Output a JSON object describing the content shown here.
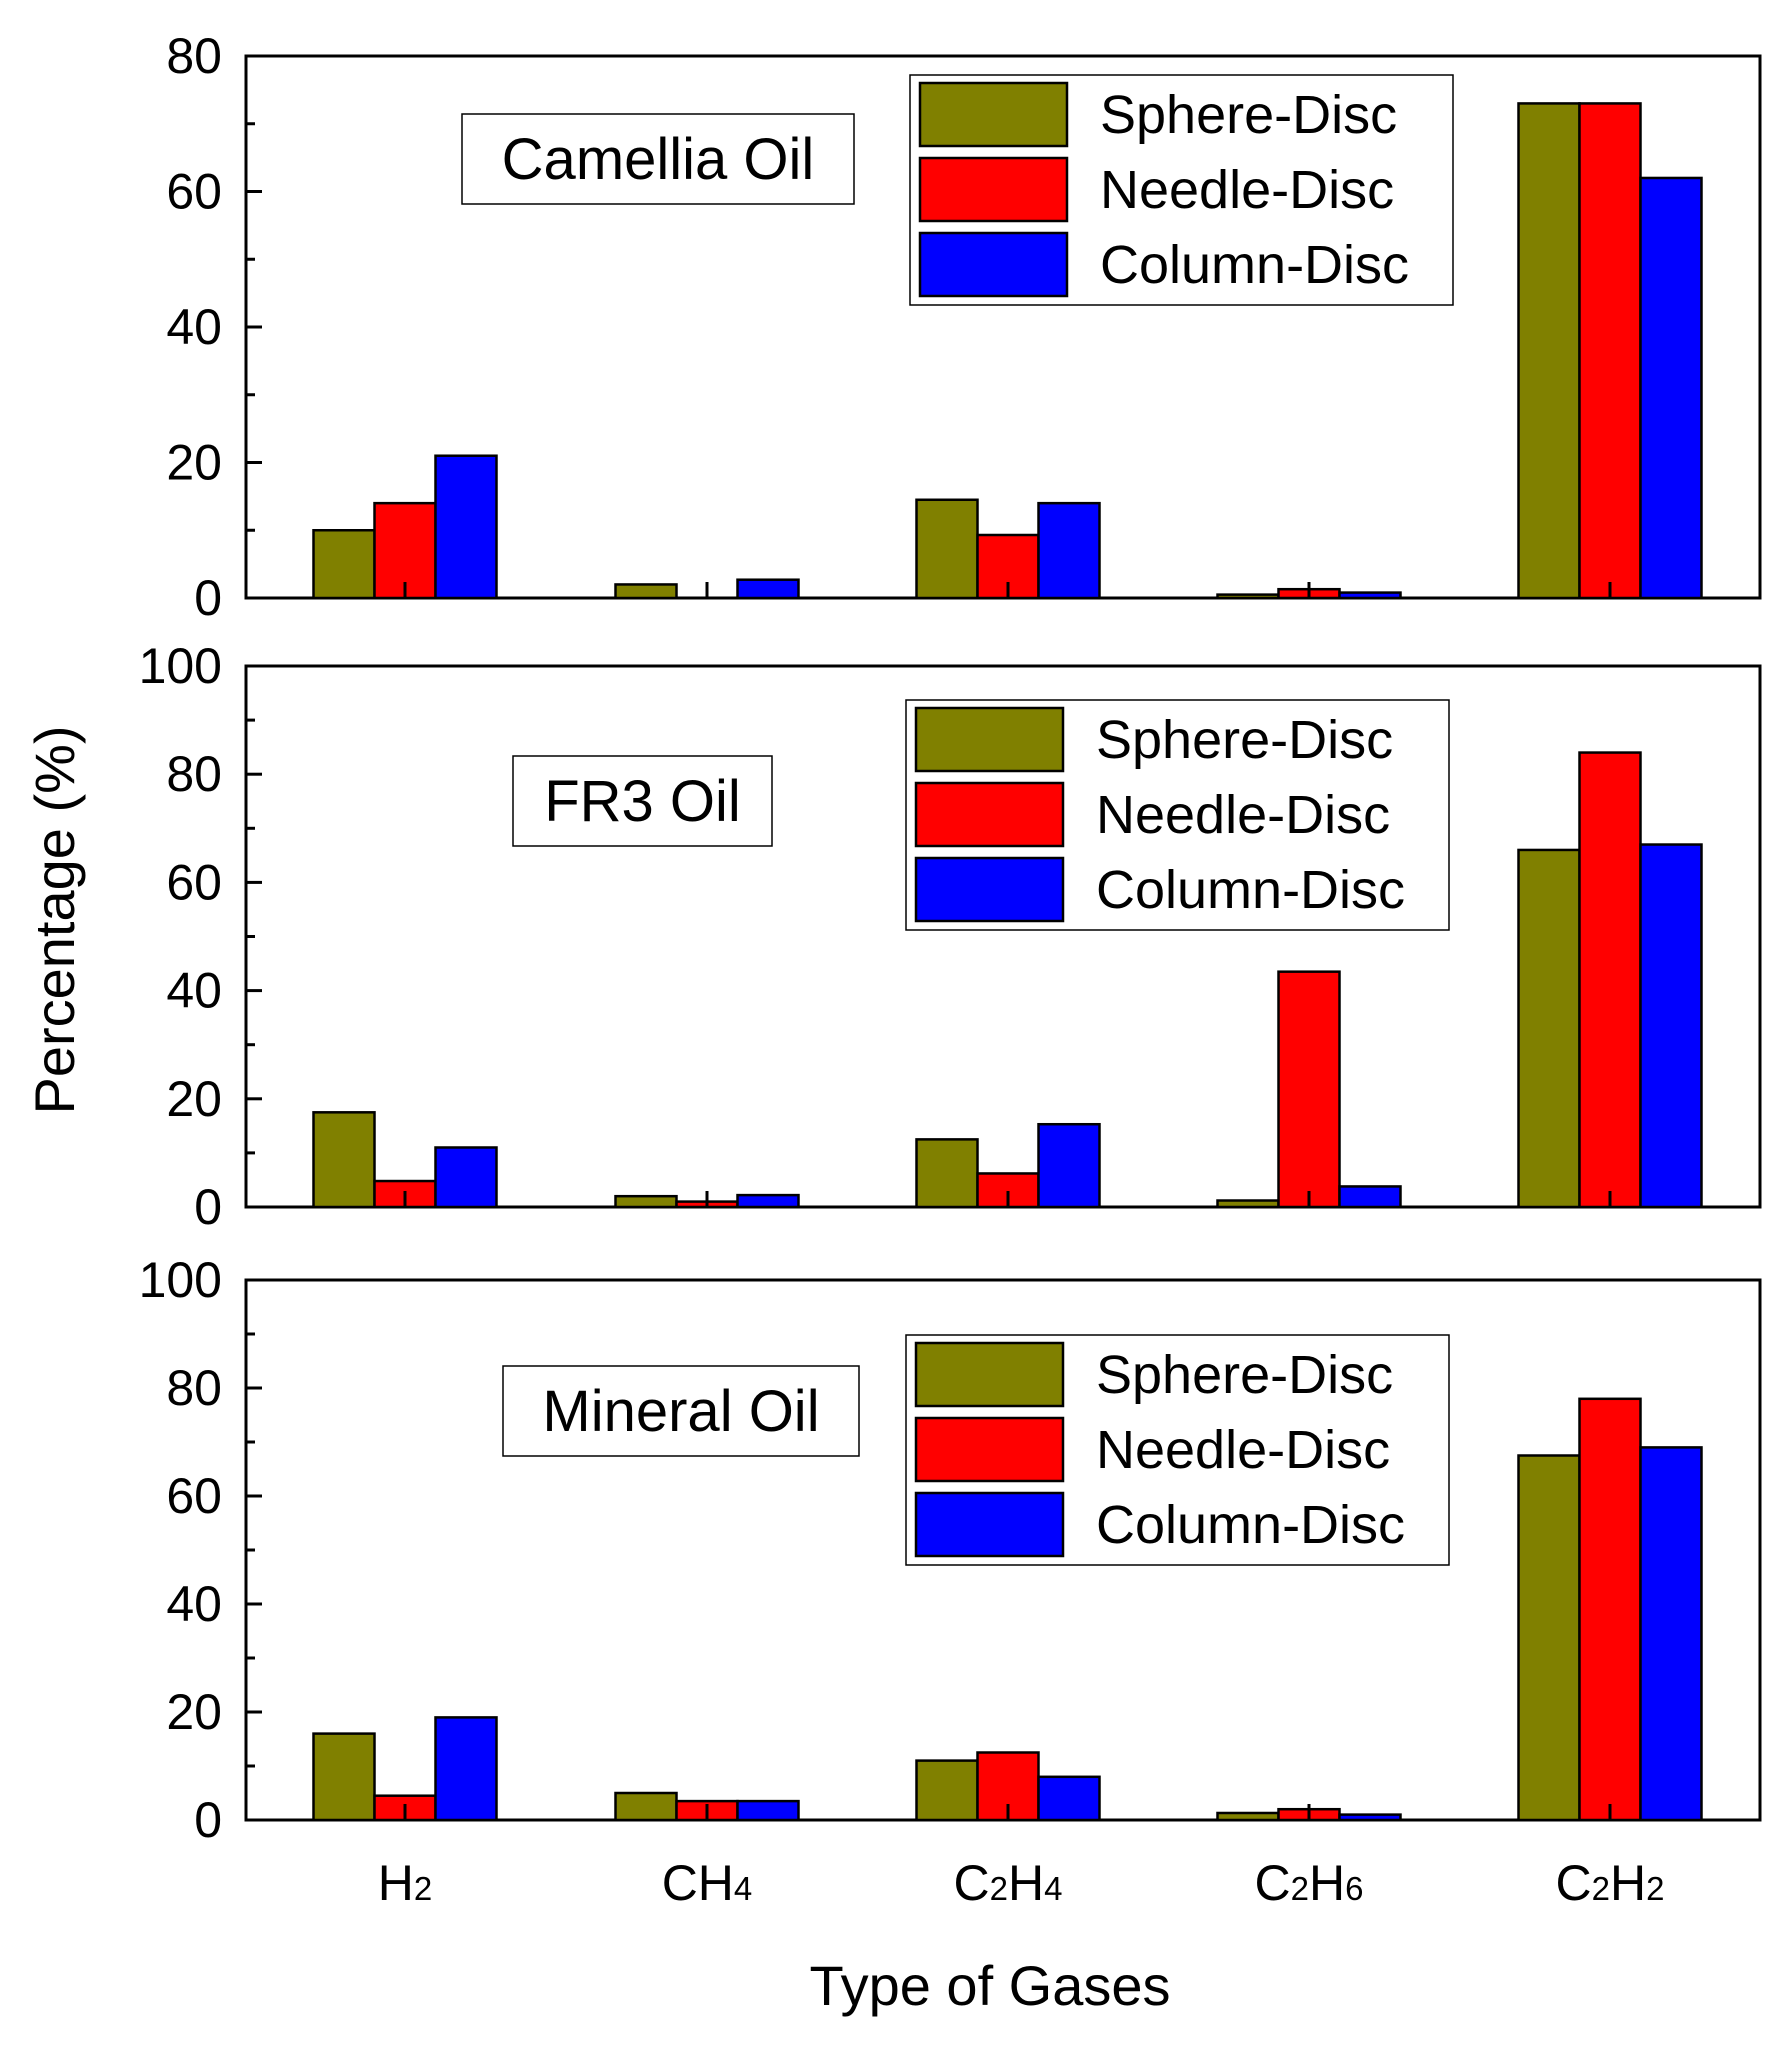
{
  "chart_data": {
    "type": "bar",
    "xlabel": "Type of Gases",
    "ylabel": "Percentage (%)",
    "categories": [
      {
        "base": "H",
        "sub": "2"
      },
      {
        "base": "CH",
        "sub": "4"
      },
      {
        "base": "C",
        "sub": "2",
        "base2": "H",
        "sub2": "4"
      },
      {
        "base": "C",
        "sub": "2",
        "base2": "H",
        "sub2": "6"
      },
      {
        "base": "C",
        "sub": "2",
        "base2": "H",
        "sub2": "2"
      }
    ],
    "series_colors": [
      "#808000",
      "#ff0000",
      "#0000ff"
    ],
    "panels": [
      {
        "title": "Camellia Oil",
        "ylim": [
          0,
          80
        ],
        "yticks": [
          "0",
          "20",
          "40",
          "60",
          "80"
        ],
        "series": [
          {
            "name": "Sphere-Disc",
            "values": [
              10,
              2,
              14.5,
              0.5,
              73
            ]
          },
          {
            "name": "Needle-Disc",
            "values": [
              14,
              0,
              9.3,
              1.3,
              73
            ]
          },
          {
            "name": "Column-Disc",
            "values": [
              21,
              2.7,
              14,
              0.8,
              62
            ]
          }
        ]
      },
      {
        "title": "FR3 Oil",
        "ylim": [
          0,
          100
        ],
        "yticks": [
          "0",
          "20",
          "40",
          "60",
          "80",
          "100"
        ],
        "series": [
          {
            "name": "Sphere-Disc",
            "values": [
              17.5,
              2,
              12.5,
              1.2,
              66
            ]
          },
          {
            "name": "Needle-Disc",
            "values": [
              4.8,
              1,
              6.2,
              43.5,
              84
            ]
          },
          {
            "name": "Column-Disc",
            "values": [
              11,
              2.2,
              15.3,
              3.8,
              67
            ]
          }
        ]
      },
      {
        "title": "Mineral Oil",
        "ylim": [
          0,
          100
        ],
        "yticks": [
          "0",
          "20",
          "40",
          "60",
          "80",
          "100"
        ],
        "series": [
          {
            "name": "Sphere-Disc",
            "values": [
              16,
              5,
              11,
              1.3,
              67.5
            ]
          },
          {
            "name": "Needle-Disc",
            "values": [
              4.5,
              3.5,
              12.5,
              2,
              78
            ]
          },
          {
            "name": "Column-Disc",
            "values": [
              19,
              3.5,
              8,
              1,
              69
            ]
          }
        ]
      }
    ]
  }
}
